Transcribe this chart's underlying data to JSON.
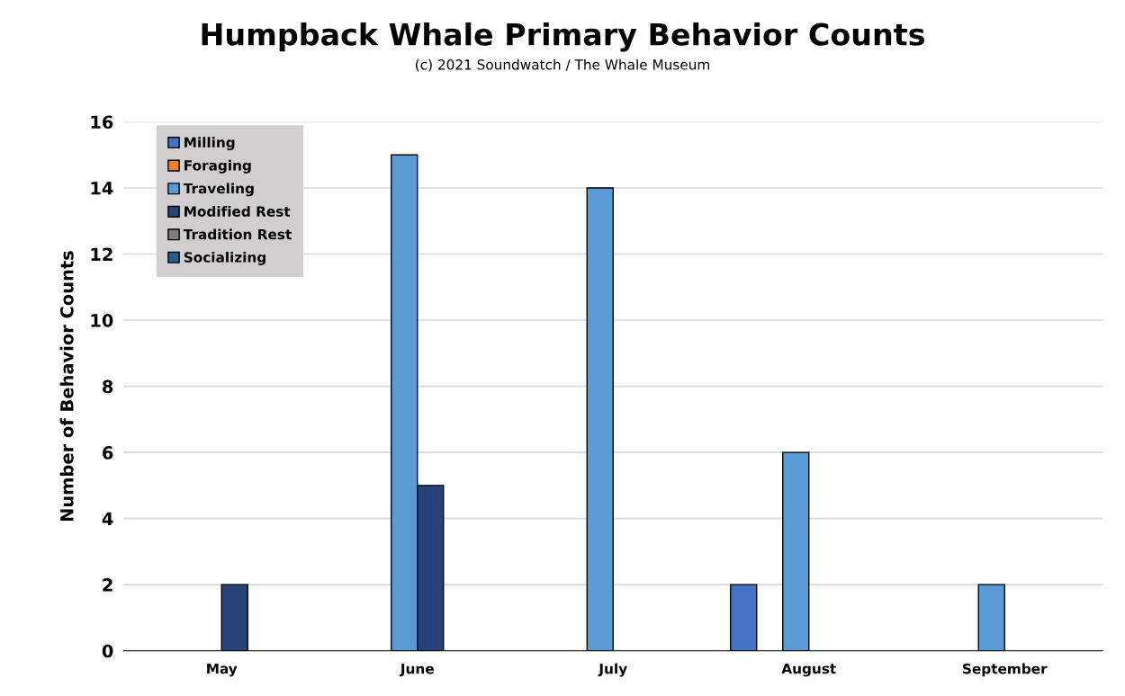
{
  "chart_data": {
    "type": "bar",
    "title": "Humpback Whale Primary Behavior Counts",
    "subtitle": "(c) 2021 Soundwatch / The Whale Museum",
    "ylabel": "Number of Behavior Counts",
    "categories": [
      "May",
      "June",
      "July",
      "August",
      "September"
    ],
    "series": [
      {
        "name": "Milling",
        "color": "#4472c4",
        "values": [
          null,
          null,
          null,
          2,
          null
        ]
      },
      {
        "name": "Foraging",
        "color": "#ed7d31",
        "values": [
          null,
          null,
          null,
          null,
          null
        ]
      },
      {
        "name": "Traveling",
        "color": "#5b9bd5",
        "values": [
          null,
          15,
          14,
          6,
          2
        ]
      },
      {
        "name": "Modified Rest",
        "color": "#264478",
        "values": [
          2,
          5,
          null,
          null,
          null
        ]
      },
      {
        "name": "Tradition Rest",
        "color": "#7f7f7f",
        "values": [
          null,
          null,
          null,
          null,
          null
        ]
      },
      {
        "name": "Socializing",
        "color": "#255e91",
        "values": [
          null,
          null,
          null,
          null,
          null
        ]
      }
    ],
    "ylim": [
      0,
      16
    ],
    "yticks": [
      0,
      2,
      4,
      6,
      8,
      10,
      12,
      14,
      16
    ],
    "grid": "y",
    "legend": "top left"
  }
}
